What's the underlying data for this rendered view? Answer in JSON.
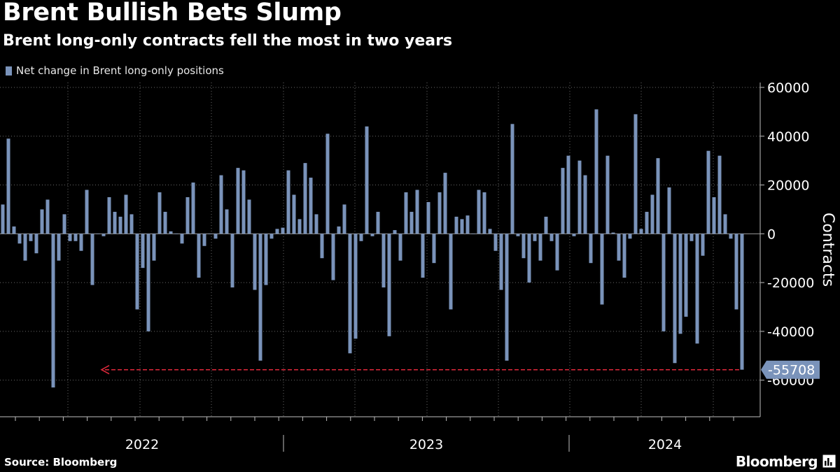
{
  "header": {
    "title": "Brent Bullish Bets Slump",
    "subtitle": "Brent long-only contracts fell the most in two years"
  },
  "footer": {
    "source": "Source: Bloomberg",
    "brand": "Bloomberg",
    "brand_icon": "bloomberg-chart-icon"
  },
  "colors": {
    "background": "#000000",
    "bar": "#7a93ba",
    "gridline": "#6a6a6a",
    "annotation_arrow": "#e0293b",
    "text": "#ffffff"
  },
  "chart_data": {
    "type": "bar",
    "title": "Brent Bullish Bets Slump",
    "subtitle": "Brent long-only contracts fell the most in two years",
    "ylabel": "Contracts",
    "xlabel": "",
    "ylim": [
      -75000,
      62000
    ],
    "yticks": [
      60000,
      40000,
      20000,
      0,
      -20000,
      -40000,
      -60000
    ],
    "ytick_labels": [
      "60000",
      "40000",
      "20000",
      "0",
      "-20000",
      "-40000",
      "-60000"
    ],
    "x_year_labels": [
      "2022",
      "2023",
      "2024"
    ],
    "grid": true,
    "legend": "top-left",
    "series": [
      {
        "name": "Net change in Brent long-only positions",
        "values": [
          12000,
          39000,
          3000,
          -4000,
          -11000,
          -3000,
          -8000,
          10000,
          14000,
          -63000,
          -11000,
          8000,
          -3000,
          -3000,
          -7000,
          18000,
          -21000,
          0,
          -1000,
          15000,
          9000,
          7000,
          16000,
          8000,
          -31000,
          -14000,
          -40000,
          -11000,
          17000,
          9000,
          1000,
          0,
          -4000,
          15000,
          21000,
          -18000,
          -5000,
          0,
          -2000,
          24000,
          10000,
          -22000,
          27000,
          26000,
          14000,
          -23000,
          -52000,
          -21000,
          -2000,
          2000,
          2500,
          26000,
          16000,
          6000,
          29000,
          23000,
          8000,
          -10000,
          41000,
          -19000,
          3000,
          12000,
          -49000,
          -43000,
          -3000,
          44000,
          -1000,
          9000,
          -22000,
          -42000,
          1500,
          -11000,
          17000,
          9000,
          18000,
          -18000,
          13000,
          -12000,
          17000,
          25000,
          -31000,
          7000,
          6000,
          7500,
          0,
          18000,
          17000,
          2000,
          -7000,
          -23000,
          -52000,
          45000,
          -1000,
          -10000,
          -20000,
          -3000,
          -11000,
          7000,
          -3000,
          -15000,
          27000,
          32000,
          -1000,
          30000,
          24000,
          -12000,
          51000,
          -29000,
          32000,
          500,
          -11000,
          -18000,
          -2000,
          49000,
          2000,
          9000,
          16000,
          31000,
          -40000,
          19000,
          -53000,
          -41000,
          -34000,
          -3000,
          -45000,
          -9000,
          34000,
          15000,
          32000,
          8000,
          -2000,
          -31000,
          -55708
        ],
        "color": "#7a93ba"
      }
    ],
    "annotations": [
      {
        "type": "value-callout",
        "text": "-55708",
        "value": -55708,
        "target_index": 132
      },
      {
        "type": "arrow",
        "direction": "left",
        "color": "#e0293b",
        "y_value": -55708
      }
    ]
  }
}
